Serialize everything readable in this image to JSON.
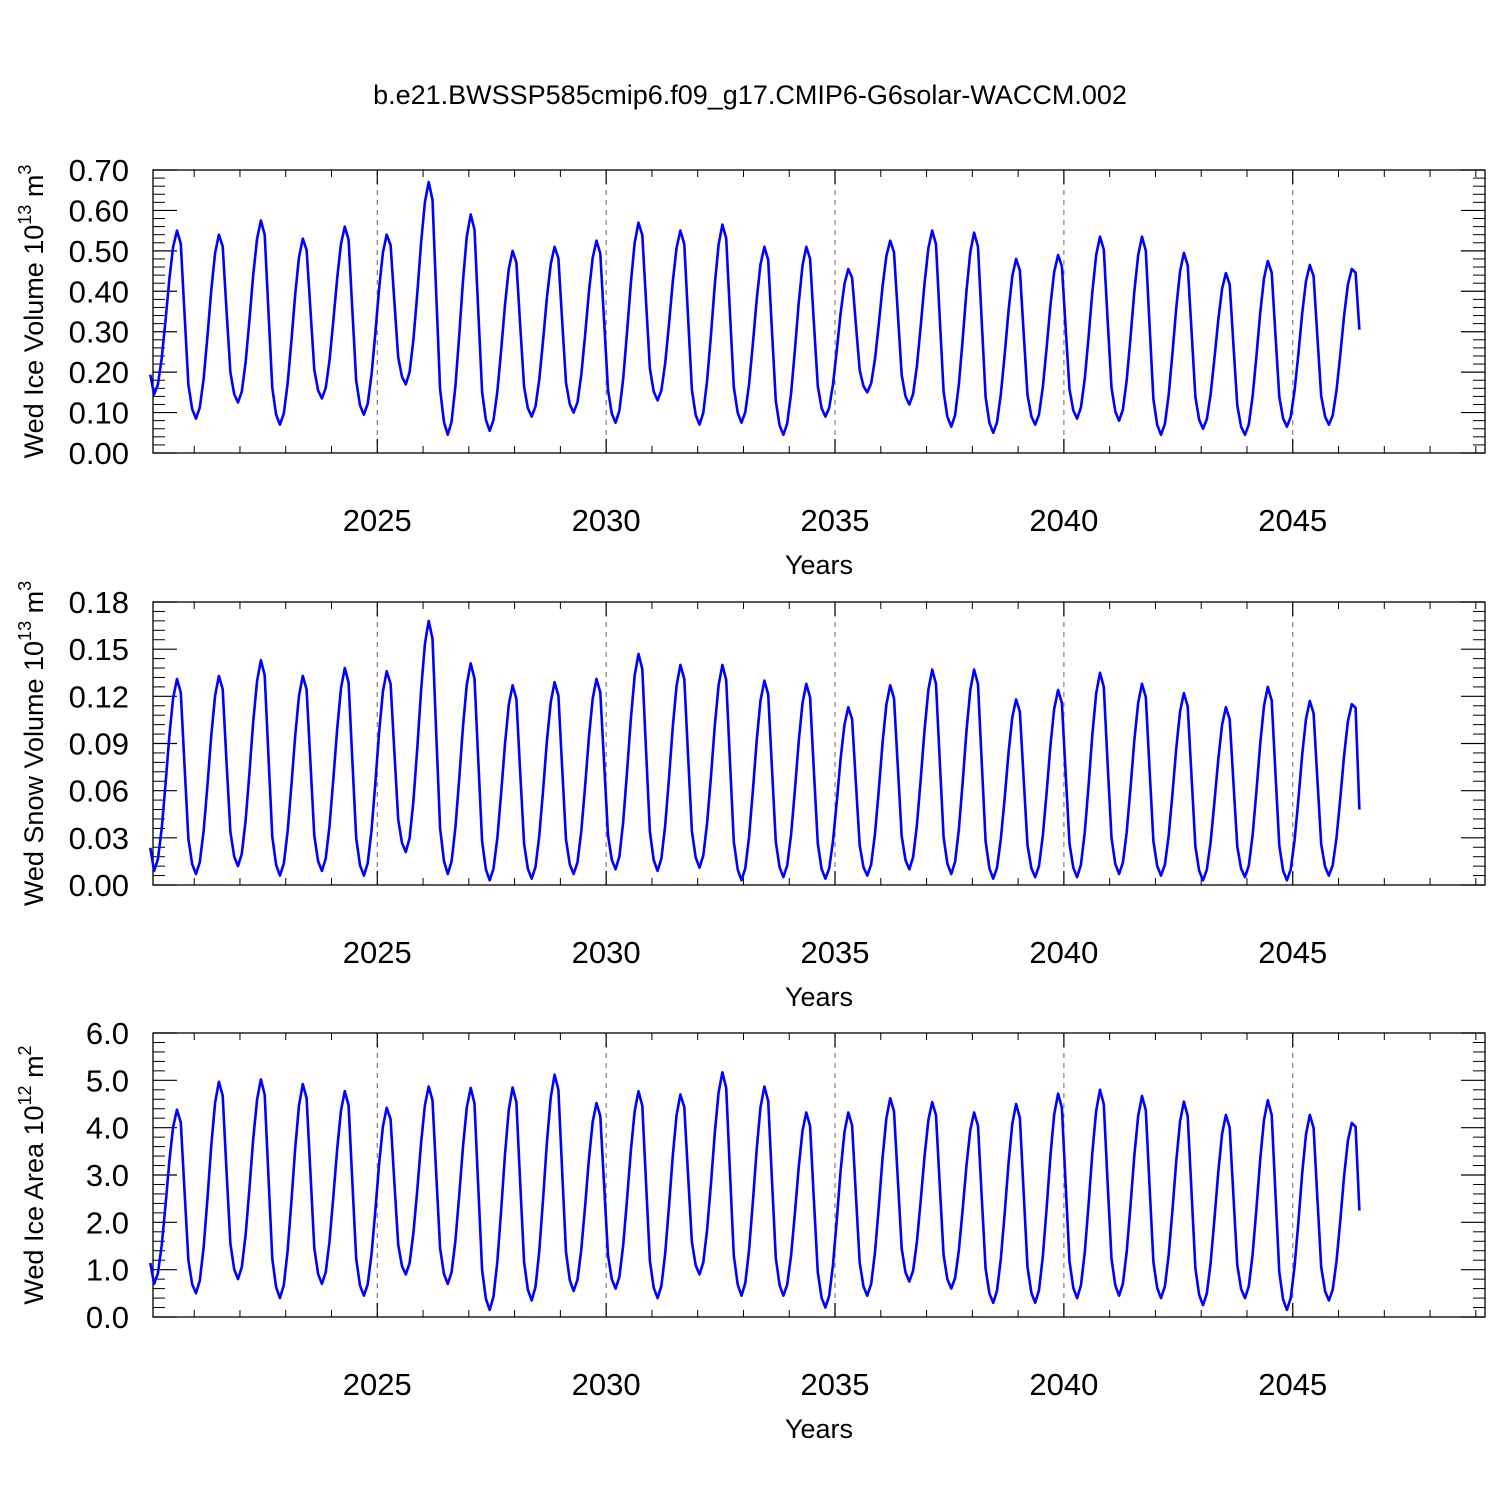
{
  "title": "b.e21.BWSSP585cmip6.f09_g17.CMIP6-G6solar-WACCM.002",
  "colors": {
    "line": "#0000ff",
    "axis": "#000000",
    "ref_line": "#7f7f7f"
  },
  "chart_data": [
    {
      "type": "line",
      "ylabel_main": "Wed Ice Volume 10",
      "ylabel_exp": "13",
      "ylabel_unit": " m",
      "ylabel_unit_exp": "3",
      "xlabel": "Years",
      "xlim": [
        2020.04,
        2049.0
      ],
      "ylim": [
        0.0,
        0.7
      ],
      "ytick_labels": [
        "0.00",
        "0.10",
        "0.20",
        "0.30",
        "0.40",
        "0.50",
        "0.60",
        "0.70"
      ],
      "xtick_labels": [
        "2025",
        "2030",
        "2035",
        "2040",
        "2045"
      ],
      "reference_lines_x": [
        2025,
        2030,
        2035,
        2040,
        2045
      ],
      "series": [
        {
          "start": 2020.04,
          "step": 0.08333,
          "pattern": [
            "pre",
            "min",
            "r1",
            "r2",
            "r3",
            "r4",
            "r5",
            "peak",
            "d1",
            "d2",
            "d3",
            "d4"
          ],
          "mins": [
            0.145,
            0.085,
            0.125,
            0.07,
            0.135,
            0.095,
            0.17,
            0.045,
            0.055,
            0.09,
            0.1,
            0.075,
            0.13,
            0.07,
            0.075,
            0.045,
            0.09,
            0.15,
            0.12,
            0.065,
            0.05,
            0.07,
            0.085,
            0.08,
            0.045,
            0.06,
            0.045,
            0.065,
            0.07
          ],
          "peaks": [
            0.55,
            0.54,
            0.575,
            0.53,
            0.56,
            0.54,
            0.67,
            0.59,
            0.5,
            0.51,
            0.525,
            0.57,
            0.55,
            0.565,
            0.51,
            0.51,
            0.455,
            0.525,
            0.55,
            0.545,
            0.48,
            0.49,
            0.535,
            0.535,
            0.495,
            0.445,
            0.475,
            0.465,
            0.455
          ],
          "end_value": 0.305
        }
      ]
    },
    {
      "type": "line",
      "ylabel_main": "Wed Snow Volume 10",
      "ylabel_exp": "13",
      "ylabel_unit": " m",
      "ylabel_unit_exp": "3",
      "xlabel": "Years",
      "xlim": [
        2020.04,
        2049.0
      ],
      "ylim": [
        0.0,
        0.18
      ],
      "ytick_labels": [
        "0.00",
        "0.03",
        "0.06",
        "0.09",
        "0.12",
        "0.15",
        "0.18"
      ],
      "xtick_labels": [
        "2025",
        "2030",
        "2035",
        "2040",
        "2045"
      ],
      "reference_lines_x": [
        2025,
        2030,
        2035,
        2040,
        2045
      ],
      "series": [
        {
          "start": 2020.04,
          "step": 0.08333,
          "mins": [
            0.009,
            0.007,
            0.012,
            0.006,
            0.009,
            0.006,
            0.021,
            0.007,
            0.003,
            0.004,
            0.007,
            0.01,
            0.009,
            0.011,
            0.003,
            0.005,
            0.004,
            0.006,
            0.01,
            0.007,
            0.004,
            0.005,
            0.005,
            0.007,
            0.006,
            0.003,
            0.005,
            0.003,
            0.006
          ],
          "peaks": [
            0.131,
            0.133,
            0.143,
            0.133,
            0.138,
            0.136,
            0.168,
            0.141,
            0.127,
            0.129,
            0.131,
            0.147,
            0.14,
            0.14,
            0.13,
            0.128,
            0.113,
            0.127,
            0.137,
            0.137,
            0.118,
            0.124,
            0.135,
            0.128,
            0.122,
            0.113,
            0.126,
            0.117,
            0.115
          ],
          "end_value": 0.048
        }
      ]
    },
    {
      "type": "line",
      "ylabel_main": "Wed Ice Area 10",
      "ylabel_exp": "12",
      "ylabel_unit": " m",
      "ylabel_unit_exp": "2",
      "xlabel": "Years",
      "xlim": [
        2020.04,
        2049.0
      ],
      "ylim": [
        0.0,
        6.0
      ],
      "ytick_labels": [
        "0.0",
        "1.0",
        "2.0",
        "3.0",
        "4.0",
        "5.0",
        "6.0"
      ],
      "xtick_labels": [
        "2025",
        "2030",
        "2035",
        "2040",
        "2045"
      ],
      "reference_lines_x": [
        2025,
        2030,
        2035,
        2040,
        2045
      ],
      "series": [
        {
          "start": 2020.04,
          "step": 0.08333,
          "mins": [
            0.7,
            0.5,
            0.8,
            0.4,
            0.7,
            0.45,
            0.9,
            0.7,
            0.15,
            0.35,
            0.55,
            0.6,
            0.4,
            0.9,
            0.45,
            0.45,
            0.2,
            0.45,
            0.75,
            0.6,
            0.3,
            0.3,
            0.4,
            0.45,
            0.4,
            0.25,
            0.4,
            0.15,
            0.35
          ],
          "peaks": [
            4.38,
            4.97,
            5.02,
            4.92,
            4.77,
            4.42,
            4.87,
            4.84,
            4.85,
            5.12,
            4.52,
            4.77,
            4.7,
            5.17,
            4.87,
            4.32,
            4.32,
            4.62,
            4.54,
            4.32,
            4.5,
            4.72,
            4.8,
            4.67,
            4.55,
            4.27,
            4.58,
            4.27,
            4.1
          ],
          "end_value": 2.25
        }
      ]
    }
  ]
}
